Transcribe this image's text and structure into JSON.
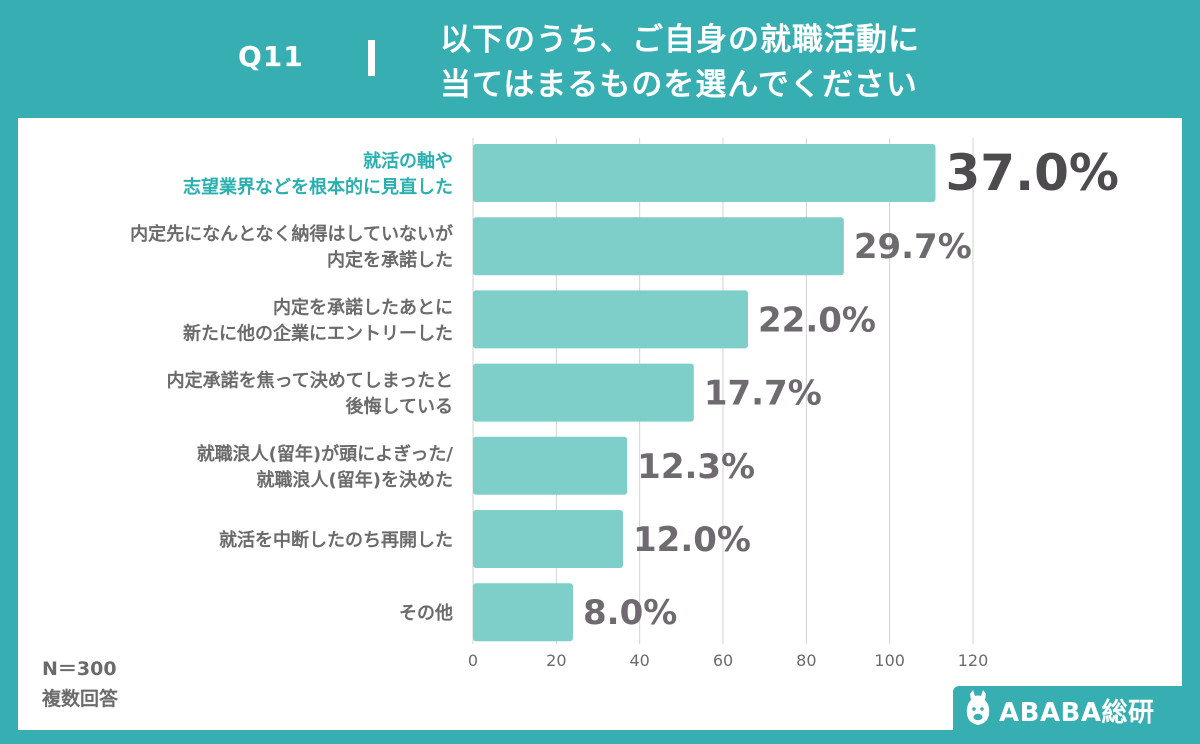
{
  "header": {
    "question_id": "Q11",
    "title_line1": "以下のうち、ご自身の就職活動に",
    "title_line2": "当てはまるものを選んでください"
  },
  "footnote": {
    "sample": "N＝300",
    "note": "複数回答"
  },
  "logo": {
    "text": "ABABA総研",
    "icon": "alpaca-icon"
  },
  "colors": {
    "background": "#36aeb2",
    "bar": "#7ecfca",
    "highlight_label": "#2bb0b0",
    "label": "#6b6b6b",
    "value": "#6e6a6f",
    "value_highlight": "#4e4b4f",
    "grid": "#d3d3d3"
  },
  "chart_data": {
    "type": "bar",
    "orientation": "horizontal",
    "categories": [
      [
        "就活の軸や",
        "志望業界などを根本的に見直した"
      ],
      [
        "内定先になんとなく納得はしていないが",
        "内定を承諾した"
      ],
      [
        "内定を承諾したあとに",
        "新たに他の企業にエントリーした"
      ],
      [
        "内定承諾を焦って決めてしまったと",
        "後悔している"
      ],
      [
        "就職浪人(留年)が頭によぎった/",
        "就職浪人(留年)を決めた"
      ],
      [
        "就活を中断したのち再開した"
      ],
      [
        "その他"
      ]
    ],
    "values": [
      111,
      89,
      66,
      53,
      37,
      36,
      24
    ],
    "value_labels": [
      "37.0%",
      "29.7%",
      "22.0%",
      "17.7%",
      "12.3%",
      "12.0%",
      "8.0%"
    ],
    "highlight_index": 0,
    "x_ticks": [
      0,
      20,
      40,
      60,
      80,
      100,
      120
    ],
    "xlim": [
      0,
      120
    ],
    "grid": true
  }
}
